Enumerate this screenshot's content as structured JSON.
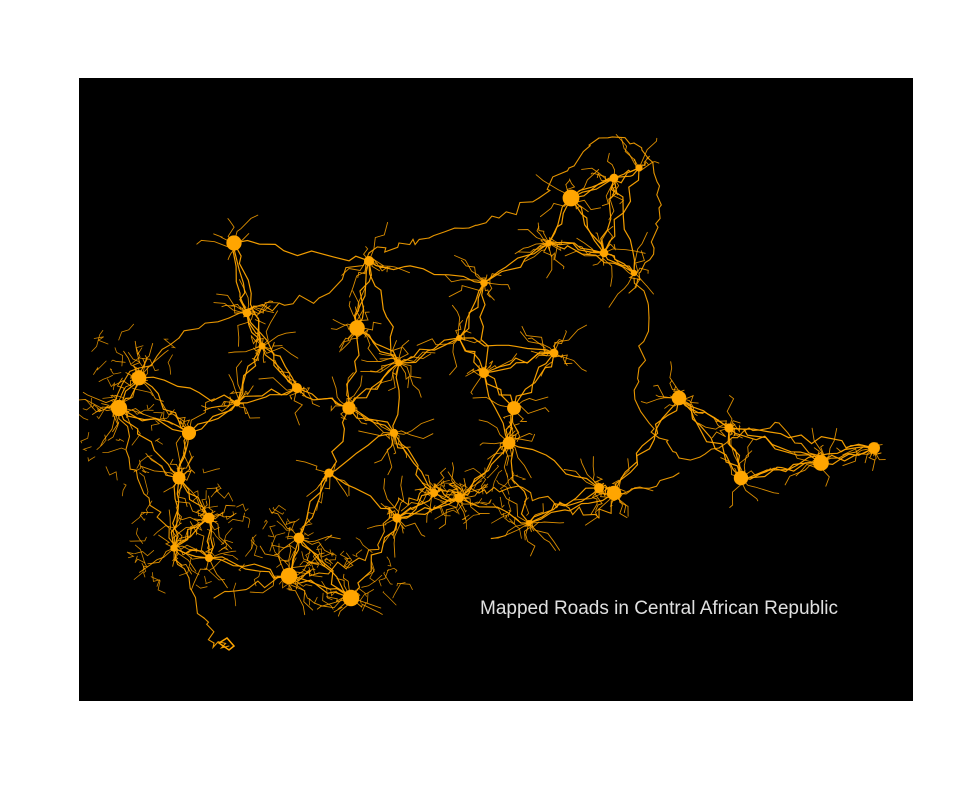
{
  "map": {
    "caption": "Mapped Roads in Central African Republic",
    "background_color": "#000000",
    "road_color": "#FFA500",
    "caption_color": "#E0E0E0",
    "page_background": "#FFFFFF"
  }
}
